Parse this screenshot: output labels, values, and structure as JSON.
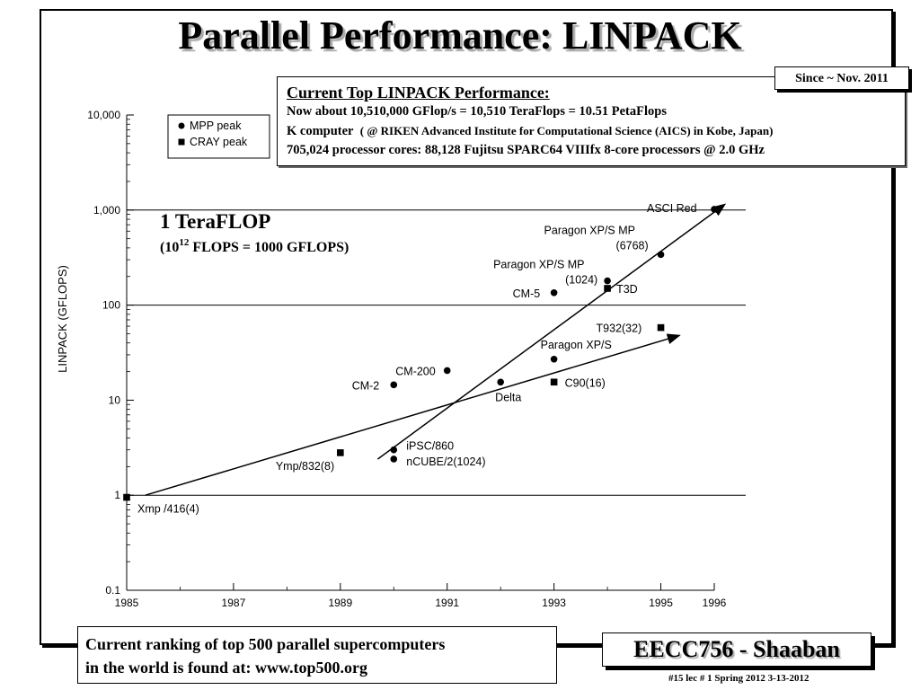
{
  "title": "Parallel Performance: LINPACK",
  "since_box": "Since ~ Nov. 2011",
  "top_box": {
    "heading": "Current Top LINPACK Performance:",
    "line1": "Now about 10,510,000 GFlop/s = 10,510 TeraFlops = 10.51 PetaFlops",
    "line2_bold": "K computer",
    "line2_rest": "( @ RIKEN Advanced Institute for Computational Science (AICS) in Kobe, Japan)",
    "line3": "705,024 processor cores:  88,128 Fujitsu SPARC64 VIIIfx 8-core processors @ 2.0 GHz"
  },
  "bottom_box": {
    "line1": "Current ranking of top 500 parallel supercomputers",
    "line2": "in the world is found at:  www.top500.org"
  },
  "course_box": "EECC756 - Shaaban",
  "footer": "#15   lec # 1    Spring 2012   3-13-2012",
  "chart_data": {
    "type": "scatter",
    "title": "",
    "xlabel": "",
    "ylabel": "LINPACK (GFLOPS)",
    "y_scale": "log",
    "ylim": [
      0.1,
      10000
    ],
    "xlim": [
      1985,
      1996
    ],
    "x_ticks": [
      1985,
      1987,
      1989,
      1991,
      1993,
      1995,
      1996
    ],
    "y_ticks": [
      {
        "value": 0.1,
        "label": "0.1"
      },
      {
        "value": 1,
        "label": "1"
      },
      {
        "value": 10,
        "label": "10"
      },
      {
        "value": 100,
        "label": "100"
      },
      {
        "value": 1000,
        "label": "1,000"
      },
      {
        "value": 10000,
        "label": "10,000"
      }
    ],
    "reference_lines": [
      1,
      100,
      1000
    ],
    "annotation": {
      "main": "1 TeraFLOP",
      "sub_prefix": "(10",
      "sub_exp": "12",
      "sub_suffix": " FLOPS = 1000 GFLOPS)"
    },
    "legend": {
      "position": "top-left",
      "entries": [
        "MPP peak",
        "CRAY peak"
      ]
    },
    "series": [
      {
        "name": "MPP peak",
        "marker": "circle",
        "points": [
          {
            "x": 1990,
            "y": 14.5,
            "label": "CM-2"
          },
          {
            "x": 1991,
            "y": 20.5,
            "label": "CM-200"
          },
          {
            "x": 1990,
            "y": 3.0,
            "label": "iPSC/860"
          },
          {
            "x": 1990,
            "y": 2.4,
            "label": "nCUBE/2(1024)"
          },
          {
            "x": 1992,
            "y": 15.5,
            "label": "Delta"
          },
          {
            "x": 1993,
            "y": 27,
            "label": "Paragon XP/S"
          },
          {
            "x": 1993,
            "y": 135,
            "label": "CM-5"
          },
          {
            "x": 1994,
            "y": 180,
            "label": "Paragon XP/S MP (1024)"
          },
          {
            "x": 1995,
            "y": 340,
            "label": "Paragon XP/S MP (6768)"
          },
          {
            "x": 1996,
            "y": 1020,
            "label": "ASCI Red"
          }
        ]
      },
      {
        "name": "CRAY peak",
        "marker": "square",
        "points": [
          {
            "x": 1985,
            "y": 0.95,
            "label": "Xmp /416(4)"
          },
          {
            "x": 1989,
            "y": 2.8,
            "label": "Ymp/832(8)"
          },
          {
            "x": 1993,
            "y": 15.5,
            "label": "C90(16)"
          },
          {
            "x": 1994,
            "y": 150,
            "label": "T3D"
          },
          {
            "x": 1995,
            "y": 58,
            "label": "T932(32)"
          }
        ]
      }
    ],
    "trend_lines": [
      {
        "from": {
          "x": 1985.35,
          "y": 1.0
        },
        "to": {
          "x": 1995.35,
          "y": 48
        }
      },
      {
        "from": {
          "x": 1989.7,
          "y": 2.4
        },
        "to": {
          "x": 1996.2,
          "y": 1150
        }
      }
    ]
  }
}
